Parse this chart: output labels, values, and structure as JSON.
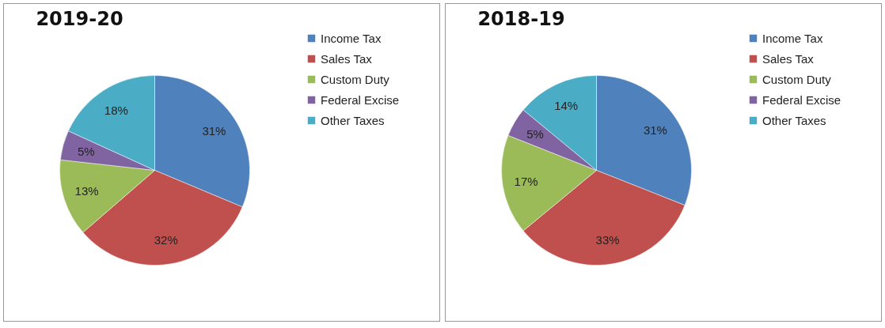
{
  "chart_data": [
    {
      "type": "pie",
      "title": "2019-20",
      "categories": [
        "Income Tax",
        "Sales Tax",
        "Custom Duty",
        "Federal Excise",
        "Other Taxes"
      ],
      "values": [
        31,
        32,
        13,
        5,
        18
      ],
      "value_labels": [
        "31%",
        "32%",
        "13%",
        "5%",
        "18%"
      ],
      "colors": [
        "#4f81bd",
        "#c0504d",
        "#9bbb59",
        "#8064a2",
        "#4bacc6"
      ],
      "legend": "right"
    },
    {
      "type": "pie",
      "title": "2018-19",
      "categories": [
        "Income Tax",
        "Sales Tax",
        "Custom Duty",
        "Federal Excise",
        "Other Taxes"
      ],
      "values": [
        31,
        33,
        17,
        5,
        14
      ],
      "value_labels": [
        "31%",
        "33%",
        "17%",
        "5%",
        "14%"
      ],
      "colors": [
        "#4f81bd",
        "#c0504d",
        "#9bbb59",
        "#8064a2",
        "#4bacc6"
      ],
      "legend": "right"
    }
  ]
}
